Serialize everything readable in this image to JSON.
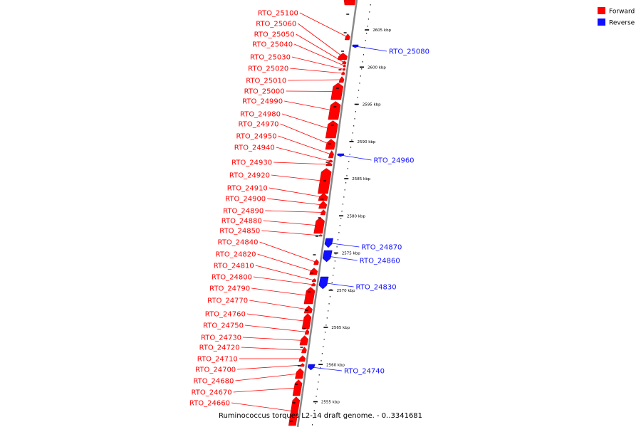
{
  "caption": "Ruminococcus torques L2-14 draft genome. - 0..3341681",
  "legend": [
    {
      "label": "Forward",
      "color": "#ff0000"
    },
    {
      "label": "Reverse",
      "color": "#1010ff"
    }
  ],
  "colors": {
    "forward": "#ff0000",
    "reverse": "#1010ff",
    "axis": "#888888"
  },
  "ticks": [
    {
      "kbp": 2605,
      "label": "2605 kbp"
    },
    {
      "kbp": 2600,
      "label": "2600 kbp"
    },
    {
      "kbp": 2595,
      "label": "2595 kbp"
    },
    {
      "kbp": 2590,
      "label": "2590 kbp"
    },
    {
      "kbp": 2585,
      "label": "2585 kbp"
    },
    {
      "kbp": 2580,
      "label": "2580 kbp"
    },
    {
      "kbp": 2575,
      "label": "2575 kbp"
    },
    {
      "kbp": 2570,
      "label": "2570 kbp"
    },
    {
      "kbp": 2565,
      "label": "2565 kbp"
    },
    {
      "kbp": 2560,
      "label": "2560 kbp"
    },
    {
      "kbp": 2555,
      "label": "2555 kbp"
    }
  ],
  "forward_genes": [
    "RTO_25100",
    "RTO_25060",
    "RTO_25050",
    "RTO_25040",
    "RTO_25030",
    "RTO_25020",
    "RTO_25010",
    "RTO_25000",
    "RTO_24990",
    "RTO_24980",
    "RTO_24970",
    "RTO_24950",
    "RTO_24940",
    "RTO_24930",
    "RTO_24920",
    "RTO_24910",
    "RTO_24900",
    "RTO_24890",
    "RTO_24880",
    "RTO_24850",
    "RTO_24840",
    "RTO_24820",
    "RTO_24810",
    "RTO_24800",
    "RTO_24790",
    "RTO_24770",
    "RTO_24760",
    "RTO_24750",
    "RTO_24730",
    "RTO_24720",
    "RTO_24710",
    "RTO_24700",
    "RTO_24680",
    "RTO_24670",
    "RTO_24660"
  ],
  "reverse_genes": [
    "RTO_25080",
    "RTO_24960",
    "RTO_24870",
    "RTO_24860",
    "RTO_24830",
    "RTO_24740"
  ]
}
